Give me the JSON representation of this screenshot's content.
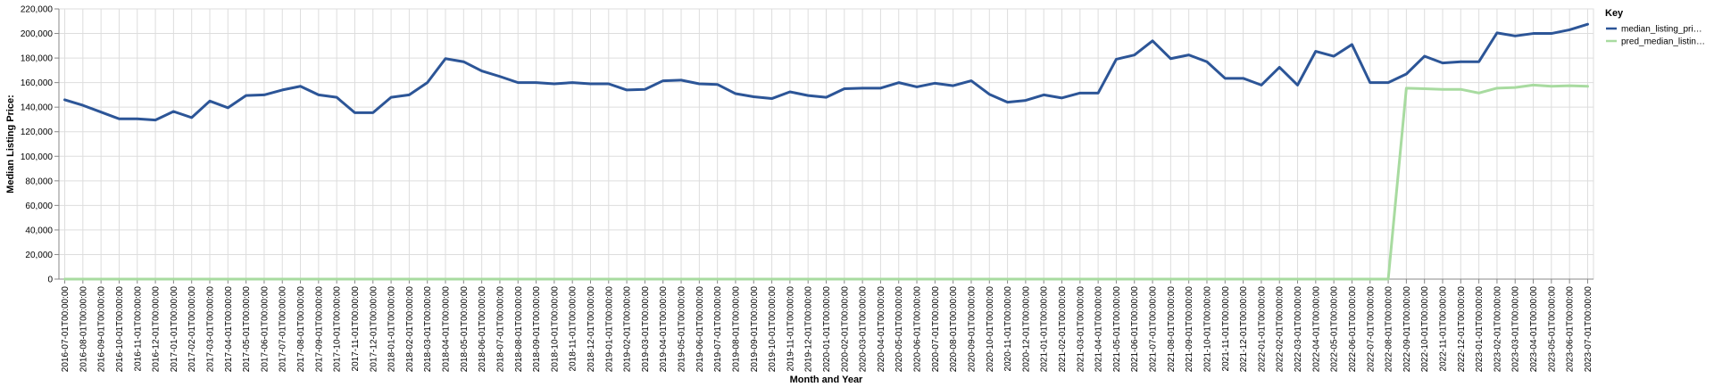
{
  "chart_data": {
    "type": "line",
    "xlabel": "Month and Year",
    "ylabel": "Median Listing Price:",
    "ylim": [
      0,
      220000
    ],
    "yticks": [
      0,
      20000,
      40000,
      60000,
      80000,
      100000,
      120000,
      140000,
      160000,
      180000,
      200000,
      220000
    ],
    "ytick_labels": [
      "0",
      "20,000",
      "40,000",
      "60,000",
      "80,000",
      "100,000",
      "120,000",
      "140,000",
      "160,000",
      "180,000",
      "200,000",
      "220,000"
    ],
    "grid": true,
    "legend": {
      "title": "Key",
      "position": "right"
    },
    "x": [
      "2016-07-01T00:00:00",
      "2016-08-01T00:00:00",
      "2016-09-01T00:00:00",
      "2016-10-01T00:00:00",
      "2016-11-01T00:00:00",
      "2016-12-01T00:00:00",
      "2017-01-01T00:00:00",
      "2017-02-01T00:00:00",
      "2017-03-01T00:00:00",
      "2017-04-01T00:00:00",
      "2017-05-01T00:00:00",
      "2017-06-01T00:00:00",
      "2017-07-01T00:00:00",
      "2017-08-01T00:00:00",
      "2017-09-01T00:00:00",
      "2017-10-01T00:00:00",
      "2017-11-01T00:00:00",
      "2017-12-01T00:00:00",
      "2018-01-01T00:00:00",
      "2018-02-01T00:00:00",
      "2018-03-01T00:00:00",
      "2018-04-01T00:00:00",
      "2018-05-01T00:00:00",
      "2018-06-01T00:00:00",
      "2018-07-01T00:00:00",
      "2018-08-01T00:00:00",
      "2018-09-01T00:00:00",
      "2018-10-01T00:00:00",
      "2018-11-01T00:00:00",
      "2018-12-01T00:00:00",
      "2019-01-01T00:00:00",
      "2019-02-01T00:00:00",
      "2019-03-01T00:00:00",
      "2019-04-01T00:00:00",
      "2019-05-01T00:00:00",
      "2019-06-01T00:00:00",
      "2019-07-01T00:00:00",
      "2019-08-01T00:00:00",
      "2019-09-01T00:00:00",
      "2019-10-01T00:00:00",
      "2019-11-01T00:00:00",
      "2019-12-01T00:00:00",
      "2020-01-01T00:00:00",
      "2020-02-01T00:00:00",
      "2020-03-01T00:00:00",
      "2020-04-01T00:00:00",
      "2020-05-01T00:00:00",
      "2020-06-01T00:00:00",
      "2020-07-01T00:00:00",
      "2020-08-01T00:00:00",
      "2020-09-01T00:00:00",
      "2020-10-01T00:00:00",
      "2020-11-01T00:00:00",
      "2020-12-01T00:00:00",
      "2021-01-01T00:00:00",
      "2021-02-01T00:00:00",
      "2021-03-01T00:00:00",
      "2021-04-01T00:00:00",
      "2021-05-01T00:00:00",
      "2021-06-01T00:00:00",
      "2021-07-01T00:00:00",
      "2021-08-01T00:00:00",
      "2021-09-01T00:00:00",
      "2021-10-01T00:00:00",
      "2021-11-01T00:00:00",
      "2021-12-01T00:00:00",
      "2022-01-01T00:00:00",
      "2022-02-01T00:00:00",
      "2022-03-01T00:00:00",
      "2022-04-01T00:00:00",
      "2022-05-01T00:00:00",
      "2022-06-01T00:00:00",
      "2022-07-01T00:00:00",
      "2022-08-01T00:00:00",
      "2022-09-01T00:00:00",
      "2022-10-01T00:00:00",
      "2022-11-01T00:00:00",
      "2022-12-01T00:00:00",
      "2023-01-01T00:00:00",
      "2023-02-01T00:00:00",
      "2023-03-01T00:00:00",
      "2023-04-01T00:00:00",
      "2023-05-01T00:00:00",
      "2023-06-01T00:00:00",
      "2023-07-01T00:00:00"
    ],
    "series": [
      {
        "name": "median_listing_pri…",
        "color": "#2c5597",
        "values": [
          146000,
          141500,
          136000,
          130500,
          130500,
          129500,
          136500,
          131500,
          145000,
          139500,
          149500,
          150000,
          154000,
          157000,
          150000,
          148000,
          135500,
          135500,
          148000,
          150000,
          160000,
          179500,
          177000,
          169500,
          165000,
          160000,
          160000,
          159000,
          160000,
          159000,
          159000,
          154000,
          154500,
          161500,
          162000,
          159000,
          158500,
          151000,
          148500,
          147000,
          152500,
          149500,
          148000,
          155000,
          155500,
          155500,
          160000,
          156500,
          159500,
          157500,
          161500,
          150500,
          144000,
          145500,
          150000,
          147500,
          151500,
          151500,
          179000,
          182500,
          194000,
          179500,
          182500,
          177000,
          163500,
          163500,
          158000,
          172500,
          158000,
          185500,
          181500,
          191000,
          160000,
          160000,
          167000,
          181500,
          176000,
          177000,
          177000,
          200500,
          198000,
          200000,
          200000,
          203000,
          207500
        ]
      },
      {
        "name": "pred_median_listin…",
        "color": "#a8dba0",
        "values": [
          0,
          0,
          0,
          0,
          0,
          0,
          0,
          0,
          0,
          0,
          0,
          0,
          0,
          0,
          0,
          0,
          0,
          0,
          0,
          0,
          0,
          0,
          0,
          0,
          0,
          0,
          0,
          0,
          0,
          0,
          0,
          0,
          0,
          0,
          0,
          0,
          0,
          0,
          0,
          0,
          0,
          0,
          0,
          0,
          0,
          0,
          0,
          0,
          0,
          0,
          0,
          0,
          0,
          0,
          0,
          0,
          0,
          0,
          0,
          0,
          0,
          0,
          0,
          0,
          0,
          0,
          0,
          0,
          0,
          0,
          0,
          0,
          0,
          0,
          155500,
          155000,
          154500,
          154500,
          151500,
          155500,
          156000,
          158000,
          157000,
          157500,
          157000
        ]
      }
    ]
  }
}
